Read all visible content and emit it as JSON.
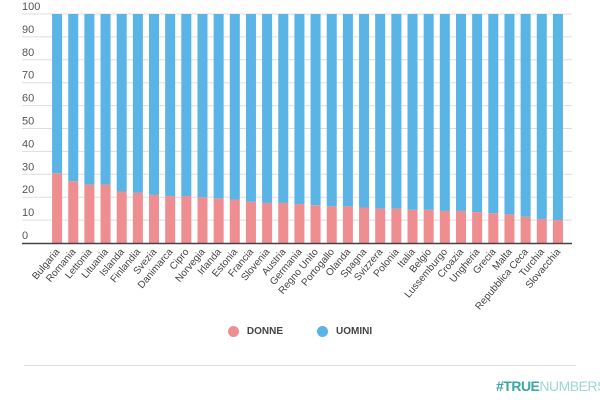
{
  "chart_data": {
    "type": "bar",
    "stacked": true,
    "categories": [
      "Bulgaria",
      "Romania",
      "Lettonia",
      "Lituania",
      "Islanda",
      "Finlandia",
      "Svezia",
      "Danimarca",
      "Cipro",
      "Norvegia",
      "Irlanda",
      "Estonia",
      "Francia",
      "Slovenia",
      "Austria",
      "Germania",
      "Regno Unito",
      "Portogallo",
      "Olanda",
      "Spagna",
      "Svizzera",
      "Polonia",
      "Italia",
      "Belgio",
      "Lussemburgo",
      "Croazia",
      "Ungheria",
      "Grecia",
      "Malta",
      "Repubblica Ceca",
      "Turchia",
      "Slovacchia"
    ],
    "series": [
      {
        "name": "DONNE",
        "color": "#ee8e90",
        "values": [
          30.5,
          27,
          25.5,
          25.5,
          22.5,
          22,
          21,
          20.5,
          20.5,
          20,
          19.5,
          19,
          18,
          17.5,
          17.5,
          17,
          16.5,
          16,
          16,
          15.5,
          15,
          15,
          14.5,
          14.5,
          14,
          14,
          13.5,
          13,
          12.5,
          11.5,
          10.5,
          10
        ]
      },
      {
        "name": "UOMINI",
        "color": "#5ab4e5",
        "values": [
          69.5,
          73,
          74.5,
          74.5,
          77.5,
          78,
          79,
          79.5,
          79.5,
          80,
          80.5,
          81,
          82,
          82.5,
          82.5,
          83,
          83.5,
          84,
          84,
          84.5,
          85,
          85,
          85.5,
          85.5,
          86,
          86,
          86.5,
          87,
          87.5,
          88.5,
          89.5,
          90
        ]
      }
    ],
    "ylim": [
      0,
      100
    ],
    "yticks": [
      0,
      10,
      20,
      30,
      40,
      50,
      60,
      70,
      80,
      90,
      100
    ],
    "grid": true,
    "legend_placement": "bottom"
  },
  "logo": {
    "text_bold": "#TRUE",
    "text_light": "NUMBERS",
    "color": "#3aa8a0"
  }
}
